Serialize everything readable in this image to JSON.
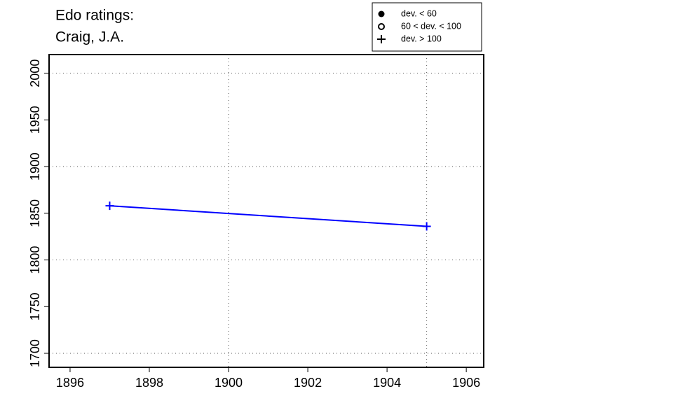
{
  "chart_data": {
    "type": "line",
    "title": [
      "Edo ratings:",
      "Craig, J.A."
    ],
    "x": [
      1897,
      1905
    ],
    "series": [
      {
        "color": "#0000ff",
        "marker": "plus",
        "values": [
          1858,
          1836
        ]
      }
    ],
    "xlim": [
      1895.47,
      1906.44
    ],
    "ylim": [
      1685,
      2020
    ],
    "xticks": [
      1896,
      1898,
      1900,
      1902,
      1904,
      1906
    ],
    "yticks": [
      1700,
      1750,
      1800,
      1850,
      1900,
      1950,
      2000
    ],
    "xgrid": [
      1900,
      1905
    ],
    "ygrid": [
      1700,
      1800,
      1900,
      2000
    ],
    "legend_position": "top-right",
    "legend": [
      {
        "label": "dev. < 60",
        "marker": "filled-circle"
      },
      {
        "label": "60 < dev. < 100",
        "marker": "open-circle"
      },
      {
        "label": "dev. > 100",
        "marker": "plus"
      }
    ]
  }
}
